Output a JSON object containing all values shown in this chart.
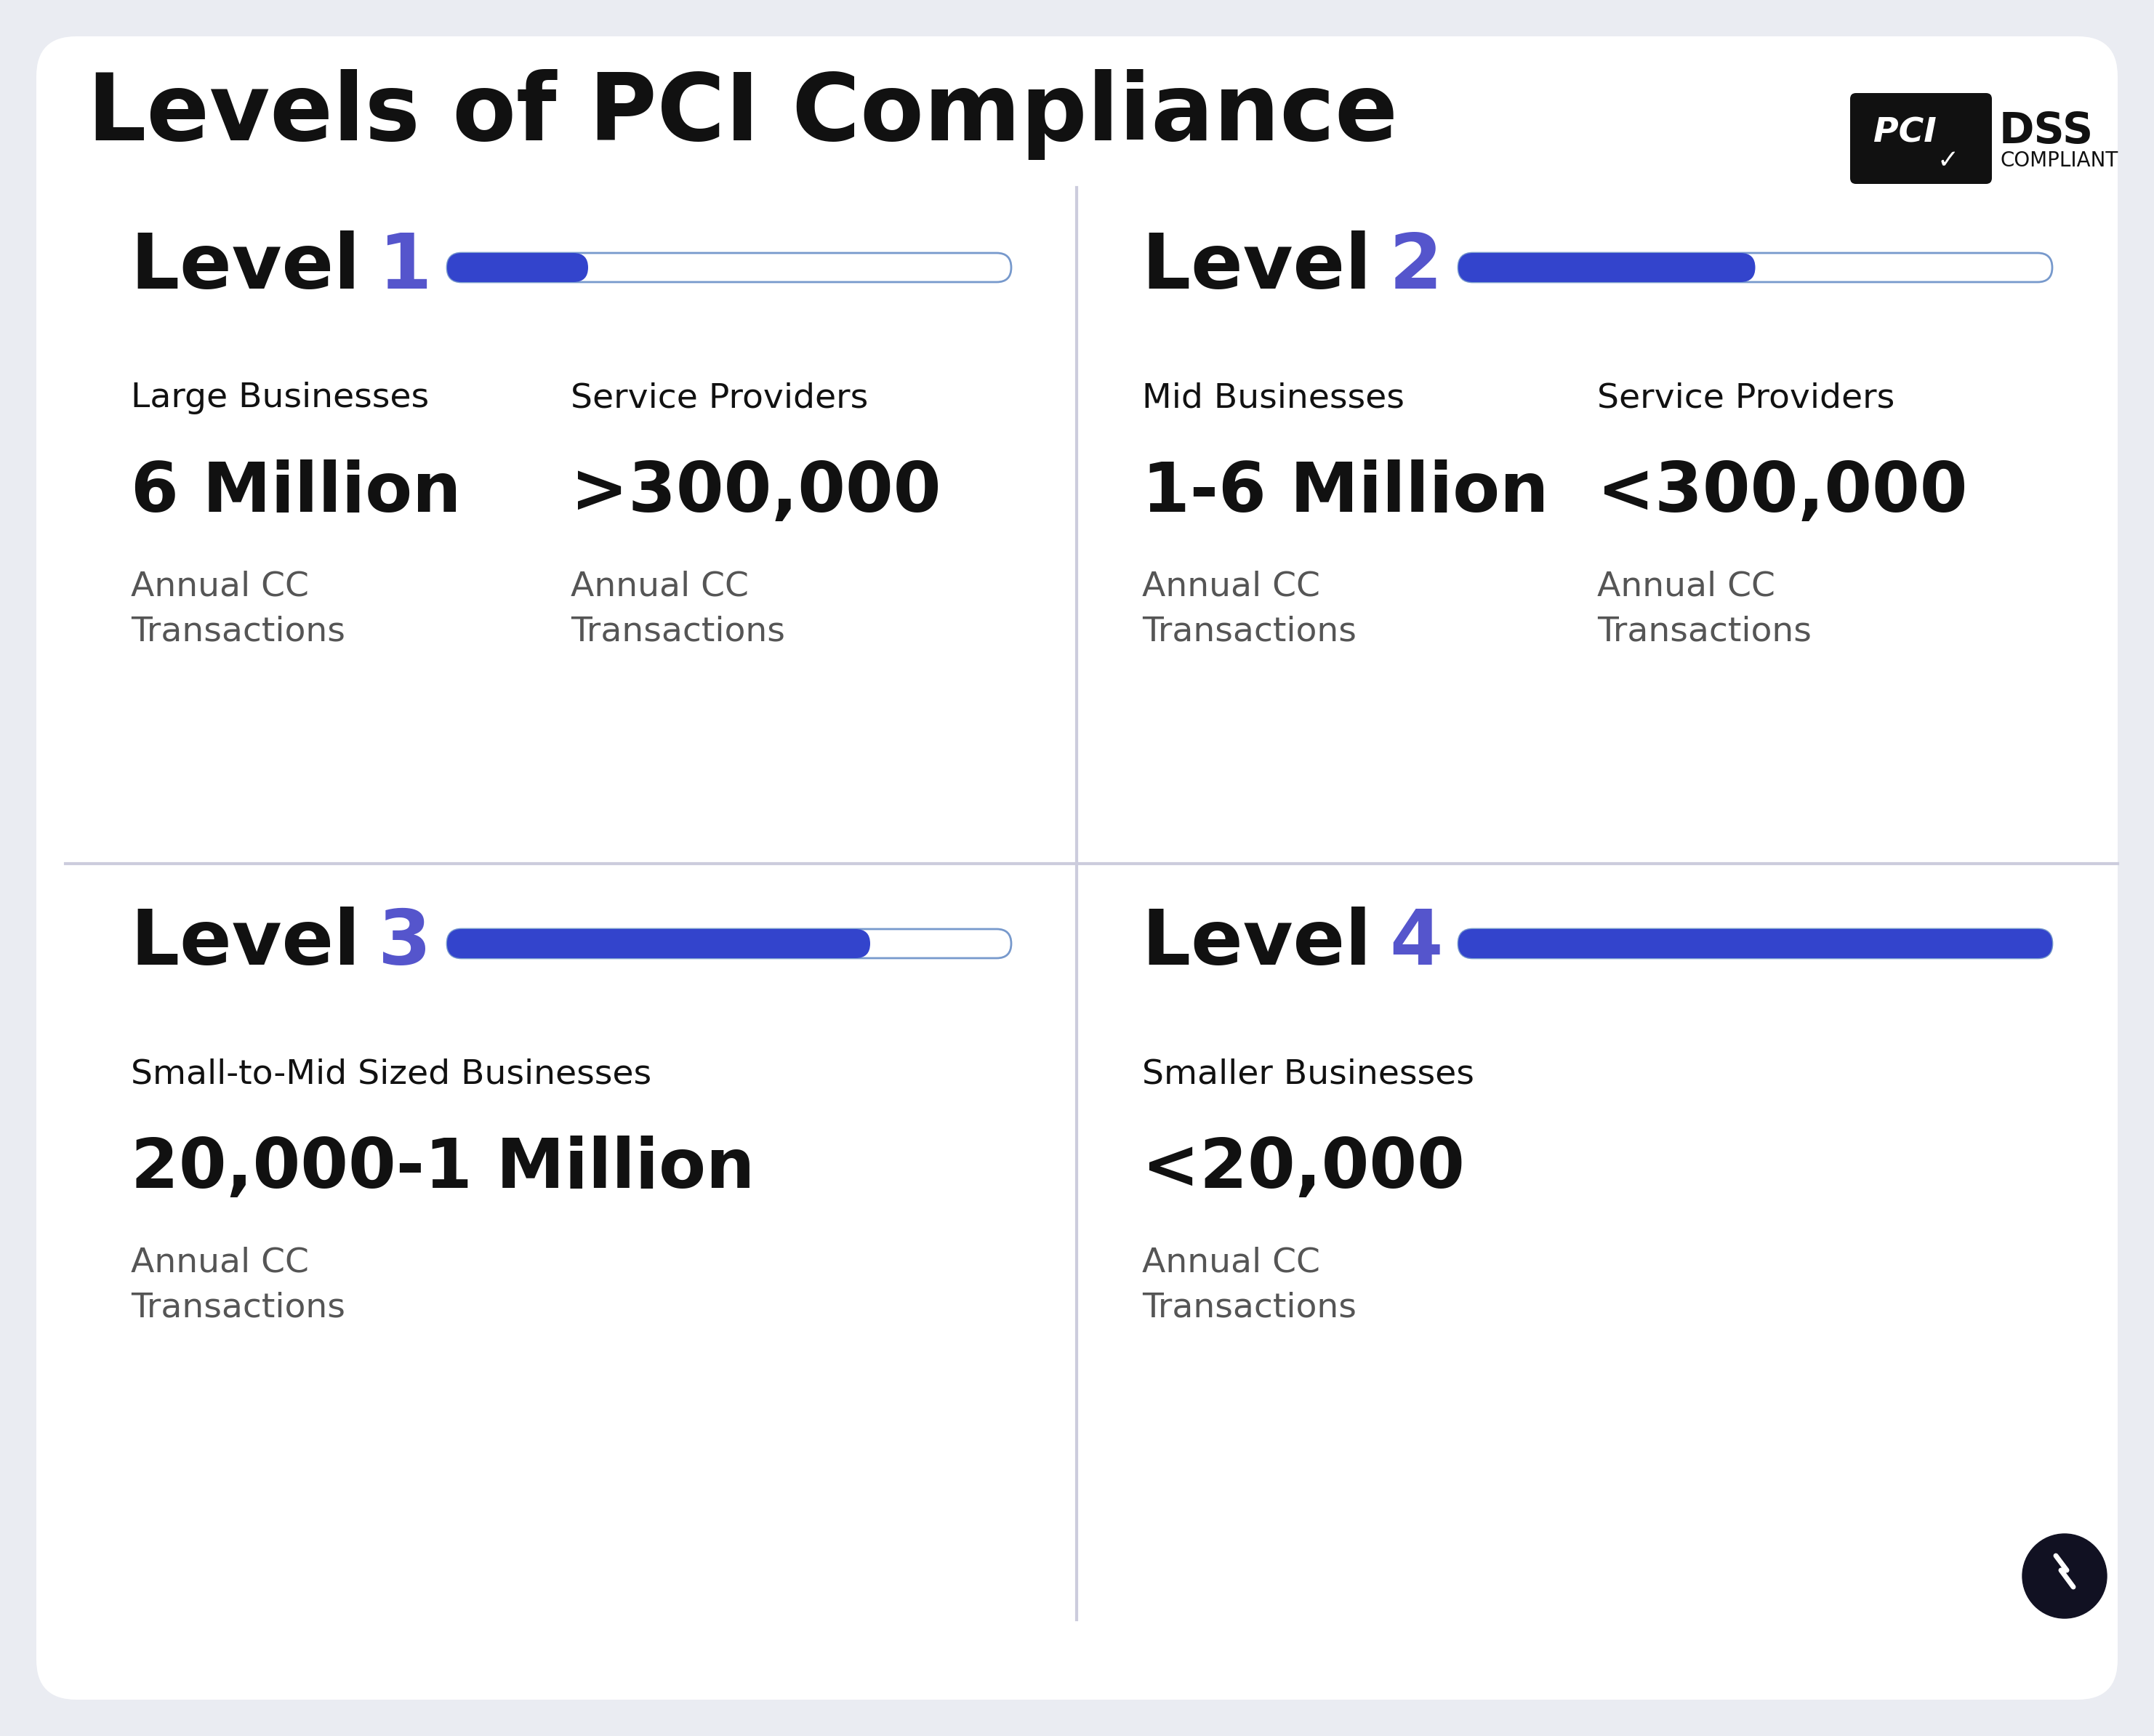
{
  "title": "Levels of PCI Compliance",
  "bg_color": "#eaecf2",
  "card_color": "#ffffff",
  "title_color": "#111111",
  "number_color": "#5555cc",
  "divider_color": "#ccccdd",
  "bar_fill_color": "#3344cc",
  "bar_edge_color": "#7799cc",
  "levels": [
    {
      "num": "1",
      "bar_fill": 0.25,
      "cols": [
        {
          "label": "Large Businesses",
          "value": "6 Million",
          "sub": "Annual CC\nTransactions"
        },
        {
          "label": "Service Providers",
          "value": ">300,000",
          "sub": "Annual CC\nTransactions"
        }
      ]
    },
    {
      "num": "2",
      "bar_fill": 0.5,
      "cols": [
        {
          "label": "Mid Businesses",
          "value": "1-6 Million",
          "sub": "Annual CC\nTransactions"
        },
        {
          "label": "Service Providers",
          "value": "<300,000",
          "sub": "Annual CC\nTransactions"
        }
      ]
    },
    {
      "num": "3",
      "bar_fill": 0.75,
      "cols": [
        {
          "label": "Small-to-Mid Sized Businesses",
          "value": "20,000-1 Million",
          "sub": "Annual CC\nTransactions"
        }
      ]
    },
    {
      "num": "4",
      "bar_fill": 1.0,
      "cols": [
        {
          "label": "Smaller Businesses",
          "value": "<20,000",
          "sub": "Annual CC\nTransactions"
        }
      ]
    }
  ]
}
